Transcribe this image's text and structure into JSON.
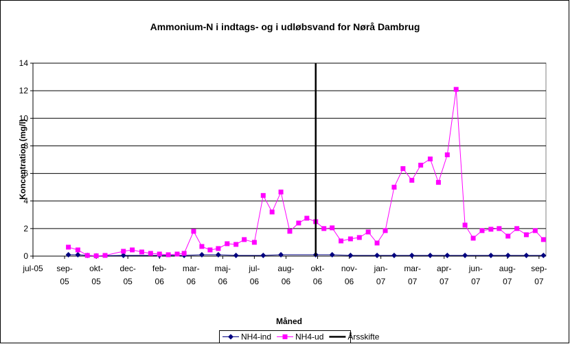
{
  "chart_data": {
    "type": "line",
    "title": "Ammonium-N i indtags- og i udløbsvand for Nørå Dambrug",
    "xlabel": "Måned",
    "ylabel": "Koncentration (mg/l)",
    "xlim": [
      38534,
      39345
    ],
    "xticks": [
      {
        "value": 38534,
        "label": "jul-05"
      },
      {
        "value": 38584,
        "label": "sep-05"
      },
      {
        "value": 38634,
        "label": "okt-05"
      },
      {
        "value": 38684,
        "label": "dec-05"
      },
      {
        "value": 38734,
        "label": "feb-06"
      },
      {
        "value": 38784,
        "label": "mar-06"
      },
      {
        "value": 38834,
        "label": "maj-06"
      },
      {
        "value": 38884,
        "label": "jul-06"
      },
      {
        "value": 38934,
        "label": "aug-06"
      },
      {
        "value": 38984,
        "label": "okt-06"
      },
      {
        "value": 39034,
        "label": "nov-06"
      },
      {
        "value": 39084,
        "label": "jan-07"
      },
      {
        "value": 39134,
        "label": "mar-07"
      },
      {
        "value": 39184,
        "label": "apr-07"
      },
      {
        "value": 39234,
        "label": "jun-07"
      },
      {
        "value": 39284,
        "label": "aug-07"
      },
      {
        "value": 39334,
        "label": "sep-07"
      }
    ],
    "ylim": [
      0,
      14
    ],
    "yticks": [
      0,
      2,
      4,
      6,
      8,
      10,
      12,
      14
    ],
    "grid": true,
    "legend": "bottom",
    "series": [
      {
        "name": "NH4-ind",
        "color": "#000080",
        "marker": "diamond",
        "x": [
          38590,
          38605,
          38620,
          38634,
          38677,
          38734,
          38773,
          38801,
          38827,
          38855,
          38898,
          38926,
          38981,
          39007,
          39036,
          39078,
          39105,
          39133,
          39162,
          39189,
          39217,
          39258,
          39285,
          39314,
          39341
        ],
        "values": [
          0.1,
          0.1,
          0.05,
          0.02,
          0.05,
          0.05,
          0.05,
          0.1,
          0.1,
          0.05,
          0.05,
          0.1,
          0.1,
          0.1,
          0.05,
          0.05,
          0.05,
          0.05,
          0.05,
          0.05,
          0.05,
          0.05,
          0.05,
          0.05,
          0.05
        ]
      },
      {
        "name": "NH4-ud",
        "color": "#ff00ff",
        "marker": "square",
        "x": [
          38590,
          38605,
          38620,
          38634,
          38648,
          38677,
          38691,
          38706,
          38720,
          38734,
          38748,
          38762,
          38773,
          38788,
          38801,
          38814,
          38827,
          38841,
          38855,
          38868,
          38884,
          38898,
          38912,
          38926,
          38940,
          38954,
          38967,
          38981,
          38994,
          39007,
          39021,
          39036,
          39050,
          39064,
          39078,
          39091,
          39105,
          39119,
          39133,
          39147,
          39162,
          39175,
          39189,
          39203,
          39217,
          39230,
          39244,
          39258,
          39271,
          39285,
          39299,
          39314,
          39328,
          39341
        ],
        "values": [
          0.65,
          0.45,
          0.05,
          0.02,
          0.05,
          0.35,
          0.45,
          0.3,
          0.2,
          0.15,
          0.1,
          0.15,
          0.2,
          1.8,
          0.7,
          0.45,
          0.55,
          0.9,
          0.85,
          1.2,
          1.0,
          4.4,
          3.2,
          4.65,
          1.8,
          2.4,
          2.75,
          2.5,
          2.0,
          2.05,
          1.1,
          1.25,
          1.35,
          1.75,
          0.95,
          1.85,
          5.0,
          6.35,
          5.5,
          6.6,
          7.05,
          5.35,
          7.35,
          12.1,
          2.25,
          1.3,
          1.85,
          1.95,
          2.0,
          1.45,
          2.0,
          1.55,
          1.85,
          1.2
        ]
      },
      {
        "name": "Årsskifte",
        "color": "#000000",
        "marker": "none",
        "x": [
          38981,
          38981
        ],
        "values": [
          0,
          14
        ]
      }
    ]
  }
}
